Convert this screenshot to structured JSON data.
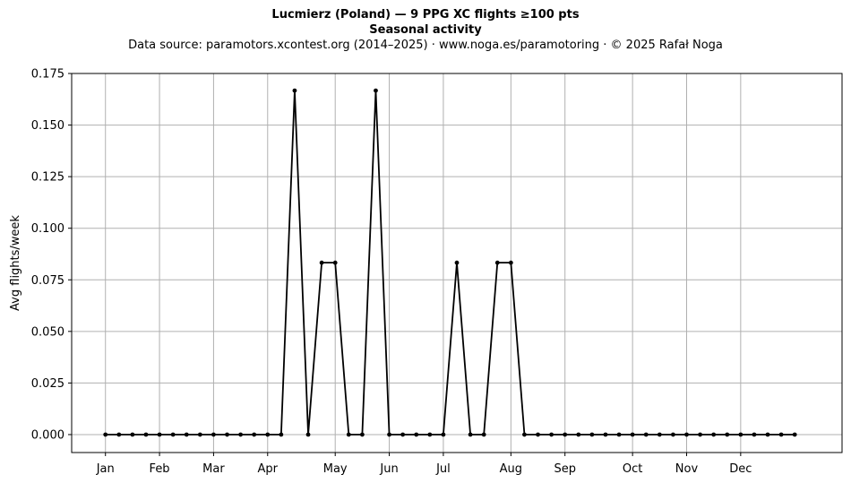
{
  "header": {
    "title": "Lucmierz (Poland)  —  9 PPG XC flights ≥100 pts",
    "subtitle": "Seasonal activity",
    "source": "Data source: paramotors.xcontest.org (2014–2025)  ·  www.noga.es/paramotoring  ·  © 2025 Rafał Noga"
  },
  "chart_data": {
    "type": "line",
    "title": "Lucmierz (Poland)  —  9 PPG XC flights ≥100 pts",
    "subtitle": "Seasonal activity",
    "xlabel": "",
    "ylabel": "Avg flights/week",
    "x_unit": "week of year",
    "x": [
      1,
      2,
      3,
      4,
      5,
      6,
      7,
      8,
      9,
      10,
      11,
      12,
      13,
      14,
      15,
      16,
      17,
      18,
      19,
      20,
      21,
      22,
      23,
      24,
      25,
      26,
      27,
      28,
      29,
      30,
      31,
      32,
      33,
      34,
      35,
      36,
      37,
      38,
      39,
      40,
      41,
      42,
      43,
      44,
      45,
      46,
      47,
      48,
      49,
      50,
      51,
      52
    ],
    "values": [
      0,
      0,
      0,
      0,
      0,
      0,
      0,
      0,
      0,
      0,
      0,
      0,
      0,
      0,
      0.1667,
      0,
      0.0833,
      0.0833,
      0,
      0,
      0.1667,
      0,
      0,
      0,
      0,
      0,
      0.0833,
      0,
      0,
      0.0833,
      0.0833,
      0,
      0,
      0,
      0,
      0,
      0,
      0,
      0,
      0,
      0,
      0,
      0,
      0,
      0,
      0,
      0,
      0,
      0,
      0,
      0,
      0
    ],
    "xlim": [
      -1.5,
      55.5
    ],
    "ylim": [
      -0.0087,
      0.175
    ],
    "x_ticks": [
      {
        "label": "Jan",
        "x": 1
      },
      {
        "label": "Feb",
        "x": 5
      },
      {
        "label": "Mar",
        "x": 9
      },
      {
        "label": "Apr",
        "x": 13
      },
      {
        "label": "May",
        "x": 18
      },
      {
        "label": "Jun",
        "x": 22
      },
      {
        "label": "Jul",
        "x": 26
      },
      {
        "label": "Aug",
        "x": 31
      },
      {
        "label": "Sep",
        "x": 35
      },
      {
        "label": "Oct",
        "x": 40
      },
      {
        "label": "Nov",
        "x": 44
      },
      {
        "label": "Dec",
        "x": 48
      }
    ],
    "y_ticks": [
      "0.000",
      "0.025",
      "0.050",
      "0.075",
      "0.100",
      "0.125",
      "0.150",
      "0.175"
    ],
    "grid": true,
    "line_color": "#000000",
    "grid_color": "#b0b0b0"
  }
}
